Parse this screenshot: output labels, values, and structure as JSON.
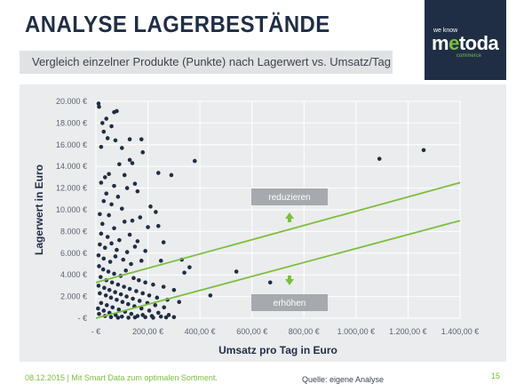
{
  "header": {
    "title": "ANALYSE LAGERBESTÄNDE",
    "subtitle": "Vergleich einzelner Produkte (Punkte) nach Lagerwert vs. Umsatz/Tag"
  },
  "logo": {
    "tagline": "we know",
    "brand_main": "m",
    "brand_accent": "e",
    "brand_rest": "toda",
    "sub": "commerce"
  },
  "footer": {
    "date_text": "08.12.2015 | Mit Smart Data zum optimalen Sortiment.",
    "source": "Quelle: eigene Analyse",
    "page": "15"
  },
  "colors": {
    "navy": "#1f2e45",
    "green": "#7bbf3c",
    "label_box": "#a6a9ad"
  },
  "chart_data": {
    "type": "scatter",
    "xlabel": "Umsatz pro Tag in Euro",
    "ylabel": "Lagerwert in Euro",
    "xlim": [
      0,
      1400
    ],
    "ylim": [
      0,
      20000
    ],
    "x_ticks": [
      0,
      200,
      400,
      600,
      800,
      1000,
      1200,
      1400
    ],
    "x_tick_labels": [
      "-  €",
      "200,00 €",
      "400,00 €",
      "600,00 €",
      "800,00 €",
      "1.000,00 €",
      "1.200,00 €",
      "1.400,00 €"
    ],
    "y_ticks": [
      0,
      2000,
      4000,
      6000,
      8000,
      10000,
      12000,
      14000,
      16000,
      18000,
      20000
    ],
    "y_tick_labels": [
      "-  €",
      "2.000 €",
      "4.000 €",
      "6.000 €",
      "8.000 €",
      "10.000 €",
      "12.000 €",
      "14.000 €",
      "16.000 €",
      "18.000 €",
      "20.000 €"
    ],
    "grid": true,
    "lines": [
      {
        "x": [
          0,
          1400
        ],
        "y": [
          3300,
          12500
        ]
      },
      {
        "x": [
          0,
          1400
        ],
        "y": [
          0,
          9000
        ]
      }
    ],
    "annotations": [
      {
        "text": "reduzieren",
        "arrow": "up"
      },
      {
        "text": "erhöhen",
        "arrow": "down"
      }
    ],
    "points": [
      [
        10,
        19800
      ],
      [
        12,
        19500
      ],
      [
        40,
        18400
      ],
      [
        70,
        19000
      ],
      [
        80,
        19100
      ],
      [
        25,
        18000
      ],
      [
        30,
        17200
      ],
      [
        60,
        17700
      ],
      [
        45,
        16600
      ],
      [
        75,
        16400
      ],
      [
        130,
        16500
      ],
      [
        175,
        16500
      ],
      [
        100,
        15700
      ],
      [
        20,
        15800
      ],
      [
        130,
        14600
      ],
      [
        140,
        14300
      ],
      [
        90,
        14200
      ],
      [
        180,
        15300
      ],
      [
        380,
        14500
      ],
      [
        1090,
        14700
      ],
      [
        1260,
        15500
      ],
      [
        240,
        13400
      ],
      [
        50,
        13300
      ],
      [
        35,
        13000
      ],
      [
        110,
        13200
      ],
      [
        20,
        12500
      ],
      [
        70,
        12200
      ],
      [
        150,
        12400
      ],
      [
        120,
        12000
      ],
      [
        290,
        13200
      ],
      [
        40,
        11500
      ],
      [
        85,
        11200
      ],
      [
        160,
        11700
      ],
      [
        30,
        10800
      ],
      [
        60,
        10500
      ],
      [
        100,
        10100
      ],
      [
        210,
        10300
      ],
      [
        230,
        9800
      ],
      [
        15,
        9600
      ],
      [
        50,
        9500
      ],
      [
        140,
        9000
      ],
      [
        170,
        9300
      ],
      [
        25,
        8700
      ],
      [
        70,
        8300
      ],
      [
        110,
        8900
      ],
      [
        200,
        8400
      ],
      [
        240,
        8500
      ],
      [
        20,
        7800
      ],
      [
        45,
        7500
      ],
      [
        90,
        7200
      ],
      [
        130,
        7700
      ],
      [
        160,
        7100
      ],
      [
        260,
        7000
      ],
      [
        15,
        6800
      ],
      [
        35,
        6500
      ],
      [
        60,
        6900
      ],
      [
        80,
        6300
      ],
      [
        120,
        6100
      ],
      [
        150,
        6600
      ],
      [
        190,
        6200
      ],
      [
        10,
        5800
      ],
      [
        30,
        5500
      ],
      [
        55,
        5200
      ],
      [
        75,
        5700
      ],
      [
        105,
        5400
      ],
      [
        135,
        5000
      ],
      [
        175,
        5300
      ],
      [
        250,
        5300
      ],
      [
        330,
        5400
      ],
      [
        360,
        4700
      ],
      [
        340,
        4200
      ],
      [
        540,
        4300
      ],
      [
        670,
        3300
      ],
      [
        440,
        2100
      ],
      [
        12,
        4800
      ],
      [
        28,
        4500
      ],
      [
        48,
        4300
      ],
      [
        70,
        4100
      ],
      [
        95,
        3900
      ],
      [
        115,
        4400
      ],
      [
        145,
        3700
      ],
      [
        165,
        3500
      ],
      [
        190,
        3300
      ],
      [
        220,
        3100
      ],
      [
        260,
        2900
      ],
      [
        300,
        2600
      ],
      [
        18,
        3800
      ],
      [
        40,
        3500
      ],
      [
        62,
        3300
      ],
      [
        85,
        3100
      ],
      [
        108,
        2900
      ],
      [
        130,
        2700
      ],
      [
        155,
        2500
      ],
      [
        180,
        2300
      ],
      [
        205,
        2100
      ],
      [
        235,
        1900
      ],
      [
        275,
        1700
      ],
      [
        320,
        1500
      ],
      [
        10,
        3000
      ],
      [
        32,
        2800
      ],
      [
        52,
        2600
      ],
      [
        74,
        2400
      ],
      [
        96,
        2200
      ],
      [
        118,
        2000
      ],
      [
        142,
        1800
      ],
      [
        168,
        1600
      ],
      [
        198,
        1400
      ],
      [
        228,
        1200
      ],
      [
        262,
        1000
      ],
      [
        15,
        2300
      ],
      [
        38,
        2100
      ],
      [
        58,
        1900
      ],
      [
        80,
        1700
      ],
      [
        102,
        1500
      ],
      [
        124,
        1300
      ],
      [
        148,
        1100
      ],
      [
        175,
        900
      ],
      [
        205,
        700
      ],
      [
        240,
        500
      ],
      [
        280,
        300
      ],
      [
        20,
        1400
      ],
      [
        42,
        1200
      ],
      [
        64,
        1000
      ],
      [
        88,
        800
      ],
      [
        112,
        600
      ],
      [
        136,
        400
      ],
      [
        160,
        200
      ],
      [
        190,
        100
      ],
      [
        300,
        100
      ],
      [
        8,
        900
      ],
      [
        30,
        700
      ],
      [
        52,
        500
      ],
      [
        76,
        300
      ],
      [
        100,
        150
      ],
      [
        125,
        50
      ],
      [
        220,
        50
      ],
      [
        270,
        80
      ],
      [
        12,
        400
      ],
      [
        35,
        200
      ],
      [
        58,
        100
      ],
      [
        85,
        50
      ],
      [
        150,
        80
      ],
      [
        180,
        300
      ],
      [
        215,
        200
      ],
      [
        250,
        150
      ]
    ]
  }
}
